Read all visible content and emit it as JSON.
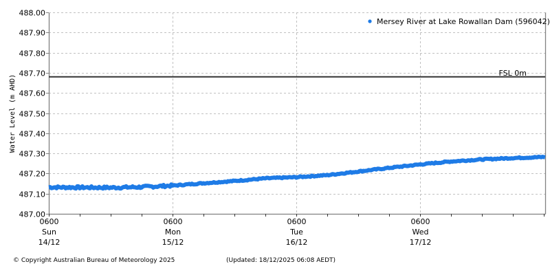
{
  "chart_data": {
    "type": "line",
    "title": "",
    "xlabel": "",
    "ylabel": "Water Level (m AHD)",
    "ylim": [
      487.0,
      488.0
    ],
    "yticks": [
      "487.00",
      "487.10",
      "487.20",
      "487.30",
      "487.40",
      "487.50",
      "487.60",
      "487.70",
      "487.80",
      "487.90",
      "488.00"
    ],
    "xticks": [
      {
        "time": "0600",
        "day": "Sun",
        "date": "14/12"
      },
      {
        "time": "0600",
        "day": "Mon",
        "date": "15/12"
      },
      {
        "time": "0600",
        "day": "Tue",
        "date": "16/12"
      },
      {
        "time": "0600",
        "day": "Wed",
        "date": "17/12"
      }
    ],
    "grid": true,
    "legend_position": "top-right",
    "series": [
      {
        "name": "Mersey River at Lake Rowallan Dam (596042)",
        "color": "#1e7be6",
        "x_hours_from_start": [
          0,
          6,
          12,
          18,
          24,
          30,
          36,
          42,
          48,
          54,
          60,
          66,
          72,
          78,
          84,
          90,
          96,
          102,
          108,
          114,
          120,
          126,
          132,
          138,
          144
        ],
        "values": [
          487.132,
          487.131,
          487.13,
          487.133,
          487.14,
          487.152,
          487.163,
          487.176,
          487.182,
          487.192,
          487.21,
          487.228,
          487.245,
          487.26,
          487.27,
          487.277,
          487.282,
          487.286,
          487.292,
          487.3,
          487.304,
          487.303,
          487.3,
          487.298,
          487.297
        ]
      }
    ],
    "reference_lines": [
      {
        "label": "FSL 0m",
        "value": 487.68,
        "color": "#333333"
      }
    ]
  },
  "footer": {
    "copyright": "© Copyright Australian Bureau of Meteorology 2025",
    "updated": "(Updated: 18/12/2025 06:08 AEDT)"
  }
}
